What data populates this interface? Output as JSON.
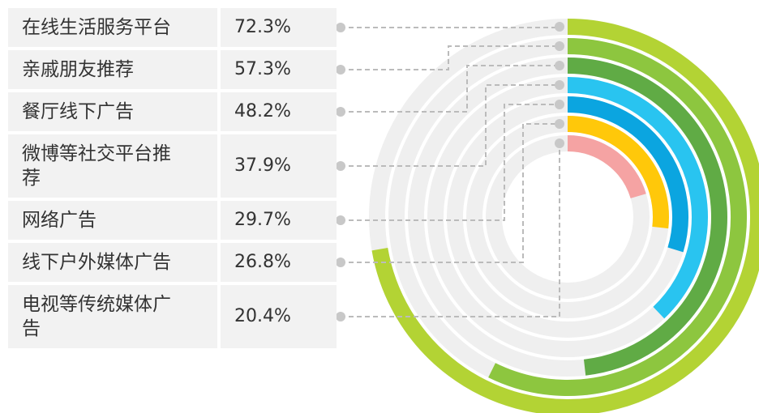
{
  "chart_data": {
    "type": "radial_bar",
    "categories": [
      "在线生活服务平台",
      "亲戚朋友推荐",
      "餐厅线下广告",
      "微博等社交平台推荐",
      "网络广告",
      "线下户外媒体广告",
      "电视等传统媒体广告"
    ],
    "values": [
      72.3,
      57.3,
      48.2,
      37.9,
      29.7,
      26.8,
      20.4
    ],
    "value_labels": [
      "72.3%",
      "57.3%",
      "48.2%",
      "37.9%",
      "29.7%",
      "26.8%",
      "20.4%"
    ],
    "colors": [
      "#b3d334",
      "#8dc63f",
      "#60ab45",
      "#29c4f0",
      "#0ba5e0",
      "#ffc80a",
      "#f5a3a3"
    ],
    "ylim": [
      0,
      100
    ]
  }
}
